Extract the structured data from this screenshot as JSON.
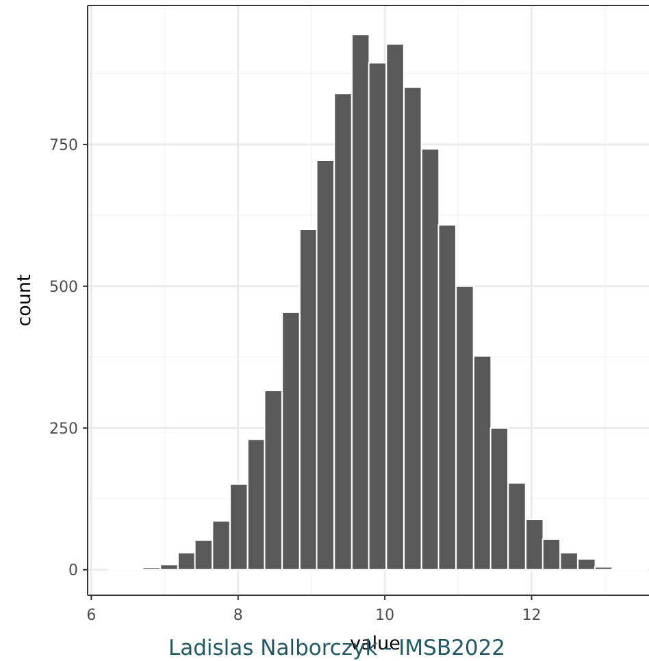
{
  "chart_data": {
    "type": "bar",
    "title": "",
    "xlabel": "value",
    "ylabel": "count",
    "caption": "Ladislas Nalborczyk - IMSB2022",
    "xlim": [
      5.95,
      13.6
    ],
    "ylim": [
      -45,
      995
    ],
    "x_ticks": [
      6,
      8,
      10,
      12
    ],
    "x_tick_labels": [
      "6",
      "8",
      "10",
      "12"
    ],
    "y_ticks": [
      0,
      250,
      500,
      750
    ],
    "y_tick_labels": [
      "0",
      "250",
      "500",
      "750"
    ],
    "grid": true,
    "bin_width": 0.237,
    "bin_start": 6.23,
    "bars": [
      {
        "x": 6.35,
        "count": 0
      },
      {
        "x": 6.59,
        "count": 0
      },
      {
        "x": 6.82,
        "count": 4
      },
      {
        "x": 7.06,
        "count": 9
      },
      {
        "x": 7.3,
        "count": 30
      },
      {
        "x": 7.53,
        "count": 52
      },
      {
        "x": 7.77,
        "count": 86
      },
      {
        "x": 8.01,
        "count": 151
      },
      {
        "x": 8.25,
        "count": 230
      },
      {
        "x": 8.48,
        "count": 316
      },
      {
        "x": 8.72,
        "count": 454
      },
      {
        "x": 8.96,
        "count": 600
      },
      {
        "x": 9.19,
        "count": 722
      },
      {
        "x": 9.43,
        "count": 840
      },
      {
        "x": 9.67,
        "count": 944
      },
      {
        "x": 9.9,
        "count": 894
      },
      {
        "x": 10.14,
        "count": 927
      },
      {
        "x": 10.38,
        "count": 851
      },
      {
        "x": 10.62,
        "count": 742
      },
      {
        "x": 10.85,
        "count": 608
      },
      {
        "x": 11.09,
        "count": 500
      },
      {
        "x": 11.33,
        "count": 377
      },
      {
        "x": 11.56,
        "count": 250
      },
      {
        "x": 11.8,
        "count": 153
      },
      {
        "x": 12.04,
        "count": 89
      },
      {
        "x": 12.27,
        "count": 54
      },
      {
        "x": 12.51,
        "count": 30
      },
      {
        "x": 12.75,
        "count": 19
      },
      {
        "x": 12.98,
        "count": 5
      },
      {
        "x": 13.22,
        "count": 0
      },
      {
        "x": 13.46,
        "count": 0
      }
    ],
    "colors": {
      "bar_fill": "#595959",
      "bar_outline": "#ffffff",
      "grid_major": "#ebebeb",
      "grid_minor": "#f5f5f5",
      "axis_line": "#333333",
      "caption": "#1f5961"
    }
  }
}
